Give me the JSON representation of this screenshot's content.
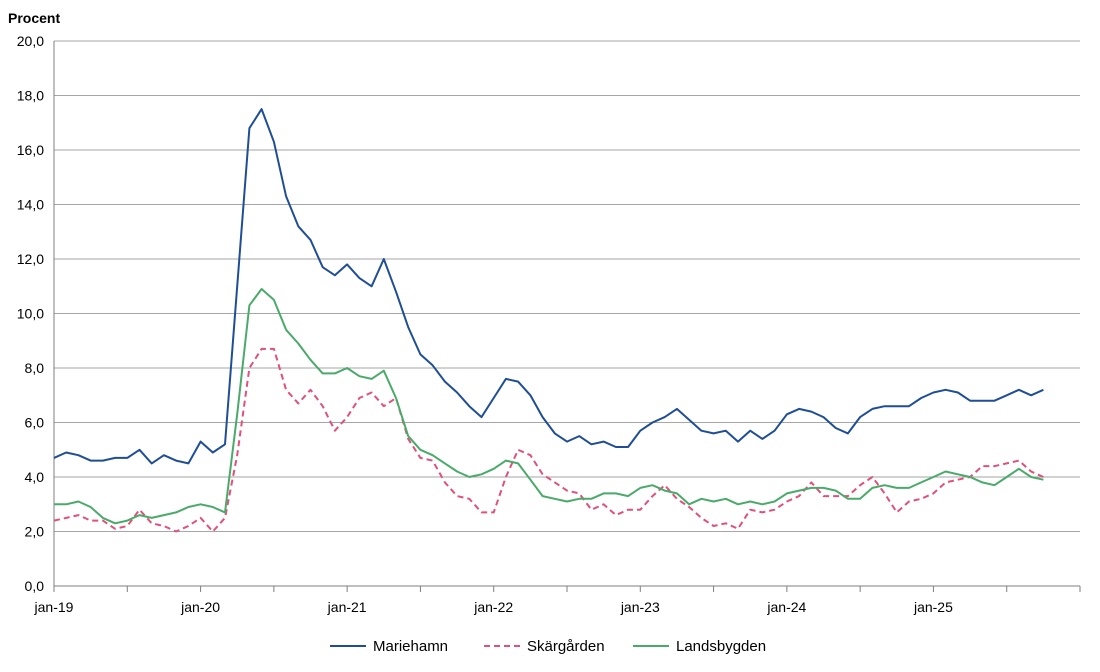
{
  "chart_data": {
    "type": "line",
    "ylabel": "Procent",
    "ylim": [
      0,
      20
    ],
    "yticks": [
      "0,0",
      "2,0",
      "4,0",
      "6,0",
      "8,0",
      "10,0",
      "12,0",
      "14,0",
      "16,0",
      "18,0",
      "20,0"
    ],
    "xtick_labels": [
      "jan-19",
      "jan-20",
      "jan-21",
      "jan-22",
      "jan-23",
      "jan-24",
      "jan-25"
    ],
    "x_start": "2019-01",
    "x_end": "2025-09",
    "grid": "horizontal",
    "legend_position": "bottom",
    "series": [
      {
        "name": "Mariehamn",
        "color": "#1f4e96",
        "dash": "solid",
        "values": [
          4.7,
          4.9,
          4.8,
          4.6,
          4.6,
          4.7,
          4.7,
          5.0,
          4.5,
          4.8,
          4.6,
          4.5,
          5.3,
          4.9,
          5.2,
          11.0,
          16.8,
          17.5,
          16.3,
          14.3,
          13.2,
          12.7,
          11.7,
          11.4,
          11.8,
          11.3,
          11.0,
          12.0,
          10.8,
          9.5,
          8.5,
          8.1,
          7.5,
          7.1,
          6.6,
          6.2,
          6.9,
          7.6,
          7.5,
          7.0,
          6.2,
          5.6,
          5.3,
          5.5,
          5.2,
          5.3,
          5.1,
          5.1,
          5.7,
          6.0,
          6.2,
          6.5,
          6.1,
          5.7,
          5.6,
          5.7,
          5.3,
          5.7,
          5.4,
          5.7,
          6.3,
          6.5,
          6.4,
          6.2,
          5.8,
          5.6,
          6.2,
          6.5,
          6.6,
          6.6,
          6.6,
          6.9,
          7.1,
          7.2,
          7.1,
          6.8,
          6.8,
          6.8,
          7.0,
          7.2,
          7.0,
          7.2
        ]
      },
      {
        "name": "Skärgården",
        "color": "#e0507a",
        "dash": "dashed",
        "values": [
          2.4,
          2.5,
          2.6,
          2.4,
          2.4,
          2.1,
          2.2,
          2.8,
          2.3,
          2.2,
          2.0,
          2.2,
          2.5,
          2.0,
          2.5,
          4.8,
          8.0,
          8.7,
          8.7,
          7.2,
          6.7,
          7.2,
          6.6,
          5.7,
          6.2,
          6.9,
          7.1,
          6.6,
          6.9,
          5.4,
          4.7,
          4.6,
          3.8,
          3.3,
          3.2,
          2.7,
          2.7,
          4.0,
          5.0,
          4.8,
          4.1,
          3.8,
          3.5,
          3.4,
          2.8,
          3.0,
          2.6,
          2.8,
          2.8,
          3.3,
          3.7,
          3.2,
          2.9,
          2.5,
          2.2,
          2.3,
          2.1,
          2.8,
          2.7,
          2.8,
          3.1,
          3.3,
          3.8,
          3.3,
          3.3,
          3.3,
          3.7,
          4.0,
          3.4,
          2.7,
          3.1,
          3.2,
          3.4,
          3.8,
          3.9,
          4.0,
          4.4,
          4.4,
          4.5,
          4.6,
          4.2,
          4.0
        ]
      },
      {
        "name": "Landsbygden",
        "color": "#4aaa6a",
        "dash": "solid",
        "values": [
          3.0,
          3.0,
          3.1,
          2.9,
          2.5,
          2.3,
          2.4,
          2.6,
          2.5,
          2.6,
          2.7,
          2.9,
          3.0,
          2.9,
          2.7,
          6.3,
          10.3,
          10.9,
          10.5,
          9.4,
          8.9,
          8.3,
          7.8,
          7.8,
          8.0,
          7.7,
          7.6,
          7.9,
          6.9,
          5.5,
          5.0,
          4.8,
          4.5,
          4.2,
          4.0,
          4.1,
          4.3,
          4.6,
          4.5,
          3.9,
          3.3,
          3.2,
          3.1,
          3.2,
          3.2,
          3.4,
          3.4,
          3.3,
          3.6,
          3.7,
          3.5,
          3.4,
          3.0,
          3.2,
          3.1,
          3.2,
          3.0,
          3.1,
          3.0,
          3.1,
          3.4,
          3.5,
          3.6,
          3.6,
          3.5,
          3.2,
          3.2,
          3.6,
          3.7,
          3.6,
          3.6,
          3.8,
          4.0,
          4.2,
          4.1,
          4.0,
          3.8,
          3.7,
          4.0,
          4.3,
          4.0,
          3.9
        ]
      }
    ]
  }
}
